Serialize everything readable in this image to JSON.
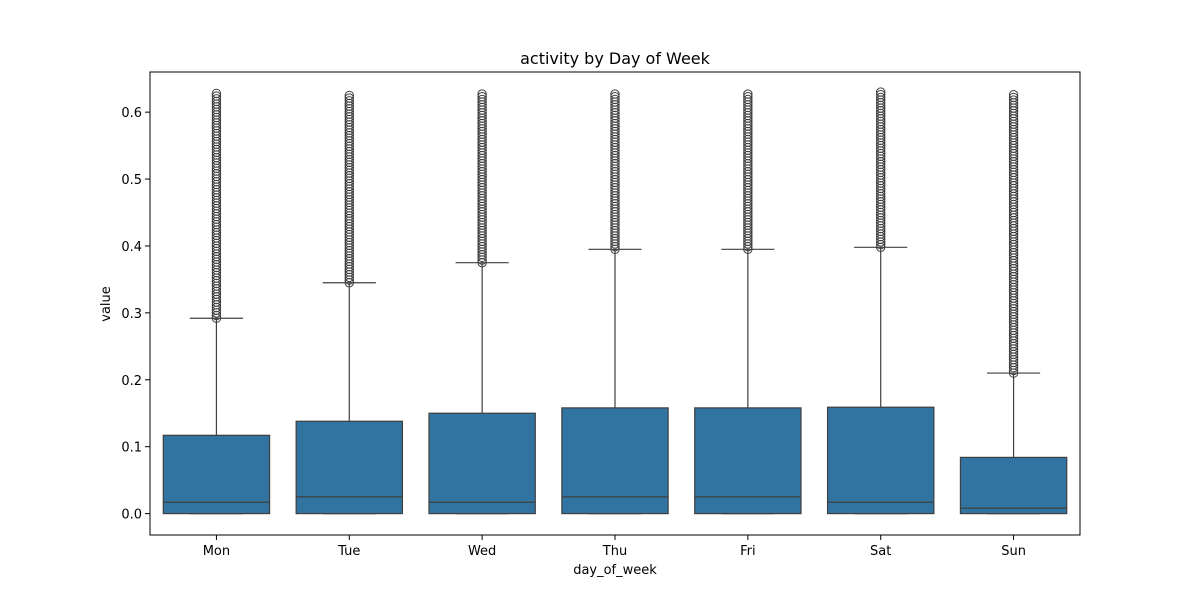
{
  "chart_data": {
    "type": "box",
    "title": "activity by Day of Week",
    "xlabel": "day_of_week",
    "ylabel": "value",
    "ylim": [
      -0.032,
      0.66
    ],
    "yticks": [
      "0.0",
      "0.1",
      "0.2",
      "0.3",
      "0.4",
      "0.5",
      "0.6"
    ],
    "box_color": "#3274a1",
    "line_color": "#3f3f3f",
    "grid": false,
    "categories": [
      "Mon",
      "Tue",
      "Wed",
      "Thu",
      "Fri",
      "Sat",
      "Sun"
    ],
    "boxes": [
      {
        "category": "Mon",
        "whisker_low": 0.0,
        "q1": 0.0,
        "median": 0.017,
        "q3": 0.117,
        "whisker_high": 0.292,
        "outliers_range": [
          0.292,
          0.63
        ]
      },
      {
        "category": "Tue",
        "whisker_low": 0.0,
        "q1": 0.0,
        "median": 0.025,
        "q3": 0.138,
        "whisker_high": 0.345,
        "outliers_range": [
          0.345,
          0.625
        ]
      },
      {
        "category": "Wed",
        "whisker_low": 0.0,
        "q1": 0.0,
        "median": 0.017,
        "q3": 0.15,
        "whisker_high": 0.375,
        "outliers_range": [
          0.375,
          0.63
        ]
      },
      {
        "category": "Thu",
        "whisker_low": 0.0,
        "q1": 0.0,
        "median": 0.025,
        "q3": 0.158,
        "whisker_high": 0.395,
        "outliers_range": [
          0.395,
          0.63
        ]
      },
      {
        "category": "Fri",
        "whisker_low": 0.0,
        "q1": 0.0,
        "median": 0.025,
        "q3": 0.158,
        "whisker_high": 0.395,
        "outliers_range": [
          0.395,
          0.628
        ]
      },
      {
        "category": "Sat",
        "whisker_low": 0.0,
        "q1": 0.0,
        "median": 0.017,
        "q3": 0.159,
        "whisker_high": 0.398,
        "outliers_range": [
          0.398,
          0.63
        ]
      },
      {
        "category": "Sun",
        "whisker_low": 0.0,
        "q1": 0.0,
        "median": 0.008,
        "q3": 0.084,
        "whisker_high": 0.21,
        "outliers_range": [
          0.21,
          0.628
        ]
      }
    ]
  }
}
